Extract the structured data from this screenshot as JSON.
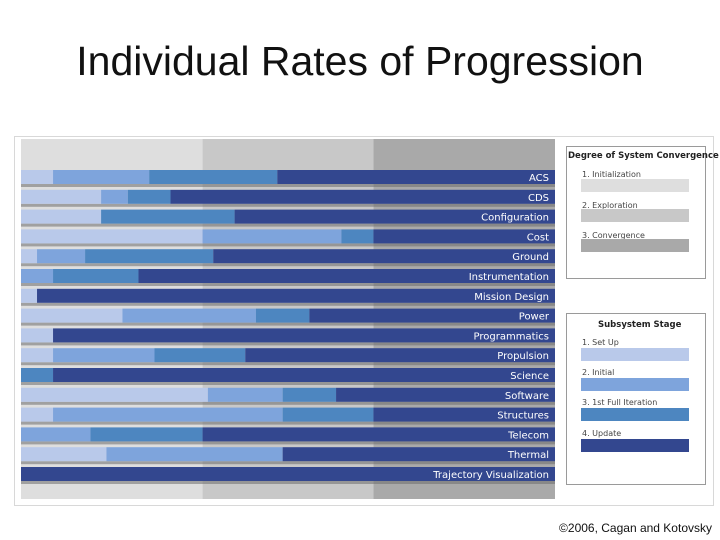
{
  "slide": {
    "title": "Individual Rates of Progression",
    "copyright": "©2006, Cagan and Kotovsky"
  },
  "chart_data": {
    "type": "bar",
    "orientation": "horizontal",
    "stacked": true,
    "categories": [
      "ACS",
      "CDS",
      "Configuration",
      "Cost",
      "Ground",
      "Instrumentation",
      "Mission Design",
      "Power",
      "Programmatics",
      "Propulsion",
      "Science",
      "Software",
      "Structures",
      "Telecom",
      "Thermal",
      "Trajectory Visualization"
    ],
    "phases": {
      "title": "Degree of System Convergence",
      "items": [
        {
          "label": "1. Initialization",
          "color": "#dedede"
        },
        {
          "label": "2. Exploration",
          "color": "#c8c8c8"
        },
        {
          "label": "3. Convergence",
          "color": "#a9a9a9"
        }
      ]
    },
    "stages": {
      "title": "Subsystem Stage",
      "items": [
        {
          "label": "1. Set Up",
          "color": "#b9c9ea"
        },
        {
          "label": "2. Initial",
          "color": "#7ea4dc"
        },
        {
          "label": "3. 1st Full Iteration",
          "color": "#4d86c0"
        },
        {
          "label": "4. Update",
          "color": "#33478f"
        }
      ]
    },
    "series": [
      {
        "category": "ACS",
        "stage_ends": [
          0.06,
          0.24,
          0.48,
          1.0
        ]
      },
      {
        "category": "CDS",
        "stage_ends": [
          0.15,
          0.2,
          0.28,
          1.0
        ]
      },
      {
        "category": "Configuration",
        "stage_ends": [
          0.15,
          0.15,
          0.4,
          1.0
        ]
      },
      {
        "category": "Cost",
        "stage_ends": [
          0.34,
          0.6,
          0.66,
          1.0
        ]
      },
      {
        "category": "Ground",
        "stage_ends": [
          0.03,
          0.12,
          0.36,
          1.0
        ]
      },
      {
        "category": "Instrumentation",
        "stage_ends": [
          0.0,
          0.06,
          0.22,
          1.0
        ]
      },
      {
        "category": "Mission Design",
        "stage_ends": [
          0.03,
          0.03,
          0.03,
          1.0
        ]
      },
      {
        "category": "Power",
        "stage_ends": [
          0.19,
          0.44,
          0.54,
          1.0
        ]
      },
      {
        "category": "Programmatics",
        "stage_ends": [
          0.06,
          0.06,
          0.06,
          1.0
        ]
      },
      {
        "category": "Propulsion",
        "stage_ends": [
          0.06,
          0.25,
          0.42,
          1.0
        ]
      },
      {
        "category": "Science",
        "stage_ends": [
          0.0,
          0.0,
          0.06,
          1.0
        ]
      },
      {
        "category": "Software",
        "stage_ends": [
          0.35,
          0.49,
          0.59,
          1.0
        ]
      },
      {
        "category": "Structures",
        "stage_ends": [
          0.06,
          0.49,
          0.66,
          1.0
        ]
      },
      {
        "category": "Telecom",
        "stage_ends": [
          0.0,
          0.13,
          0.34,
          1.0
        ]
      },
      {
        "category": "Thermal",
        "stage_ends": [
          0.16,
          0.49,
          0.49,
          1.0
        ]
      },
      {
        "category": "Trajectory Visualization",
        "stage_ends": [
          0.0,
          0.0,
          0.0,
          1.0
        ]
      }
    ],
    "phase_boundaries": [
      0.34,
      0.66,
      1.0
    ],
    "xlim": [
      0,
      1
    ]
  }
}
